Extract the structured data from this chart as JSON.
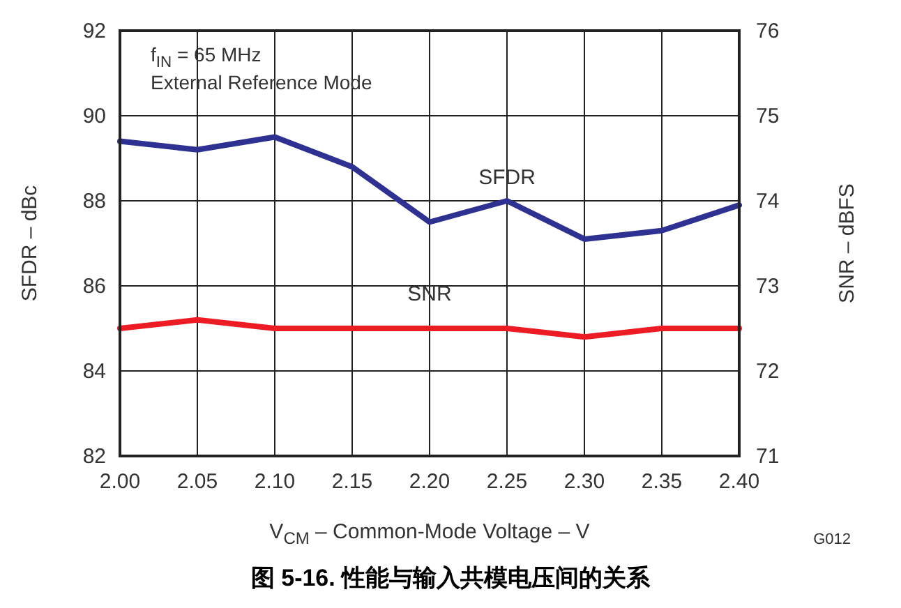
{
  "chart_data": {
    "type": "line",
    "title": "图 5-16. 性能与输入共模电压间的关系",
    "xlabel": "V$_{CM}$ – Common-Mode Voltage – V",
    "ylabel": "SFDR – dBc",
    "y2label": "SNR – dBFS",
    "x": [
      2.0,
      2.05,
      2.1,
      2.15,
      2.2,
      2.25,
      2.3,
      2.35,
      2.4
    ],
    "series": [
      {
        "name": "SFDR",
        "color": "#2e3192",
        "values": [
          89.4,
          89.2,
          89.5,
          88.8,
          87.5,
          88.0,
          87.1,
          87.3,
          87.9
        ]
      },
      {
        "name": "SNR",
        "color": "#ed1c24",
        "axis": "y2",
        "values": [
          72.5,
          72.6,
          72.5,
          72.5,
          72.5,
          72.5,
          72.4,
          72.5,
          72.5
        ]
      }
    ],
    "xlim": [
      2.0,
      2.4
    ],
    "xticks": [
      {
        "value": 2.0,
        "label": "2.00"
      },
      {
        "value": 2.05,
        "label": "2.05"
      },
      {
        "value": 2.1,
        "label": "2.10"
      },
      {
        "value": 2.15,
        "label": "2.15"
      },
      {
        "value": 2.2,
        "label": "2.20"
      },
      {
        "value": 2.25,
        "label": "2.25"
      },
      {
        "value": 2.3,
        "label": "2.30"
      },
      {
        "value": 2.35,
        "label": "2.35"
      },
      {
        "value": 2.4,
        "label": "2.40"
      }
    ],
    "ylim": [
      82,
      92
    ],
    "yticks": [
      82,
      84,
      86,
      88,
      90,
      92
    ],
    "y2lim": [
      71,
      76
    ],
    "y2ticks": [
      71,
      72,
      73,
      74,
      75,
      76
    ],
    "grid": true,
    "marker": "none",
    "line_style": "solid",
    "annotations": [
      "f$_{IN}$ = 65 MHz",
      "External Reference Mode",
      "G012"
    ]
  }
}
